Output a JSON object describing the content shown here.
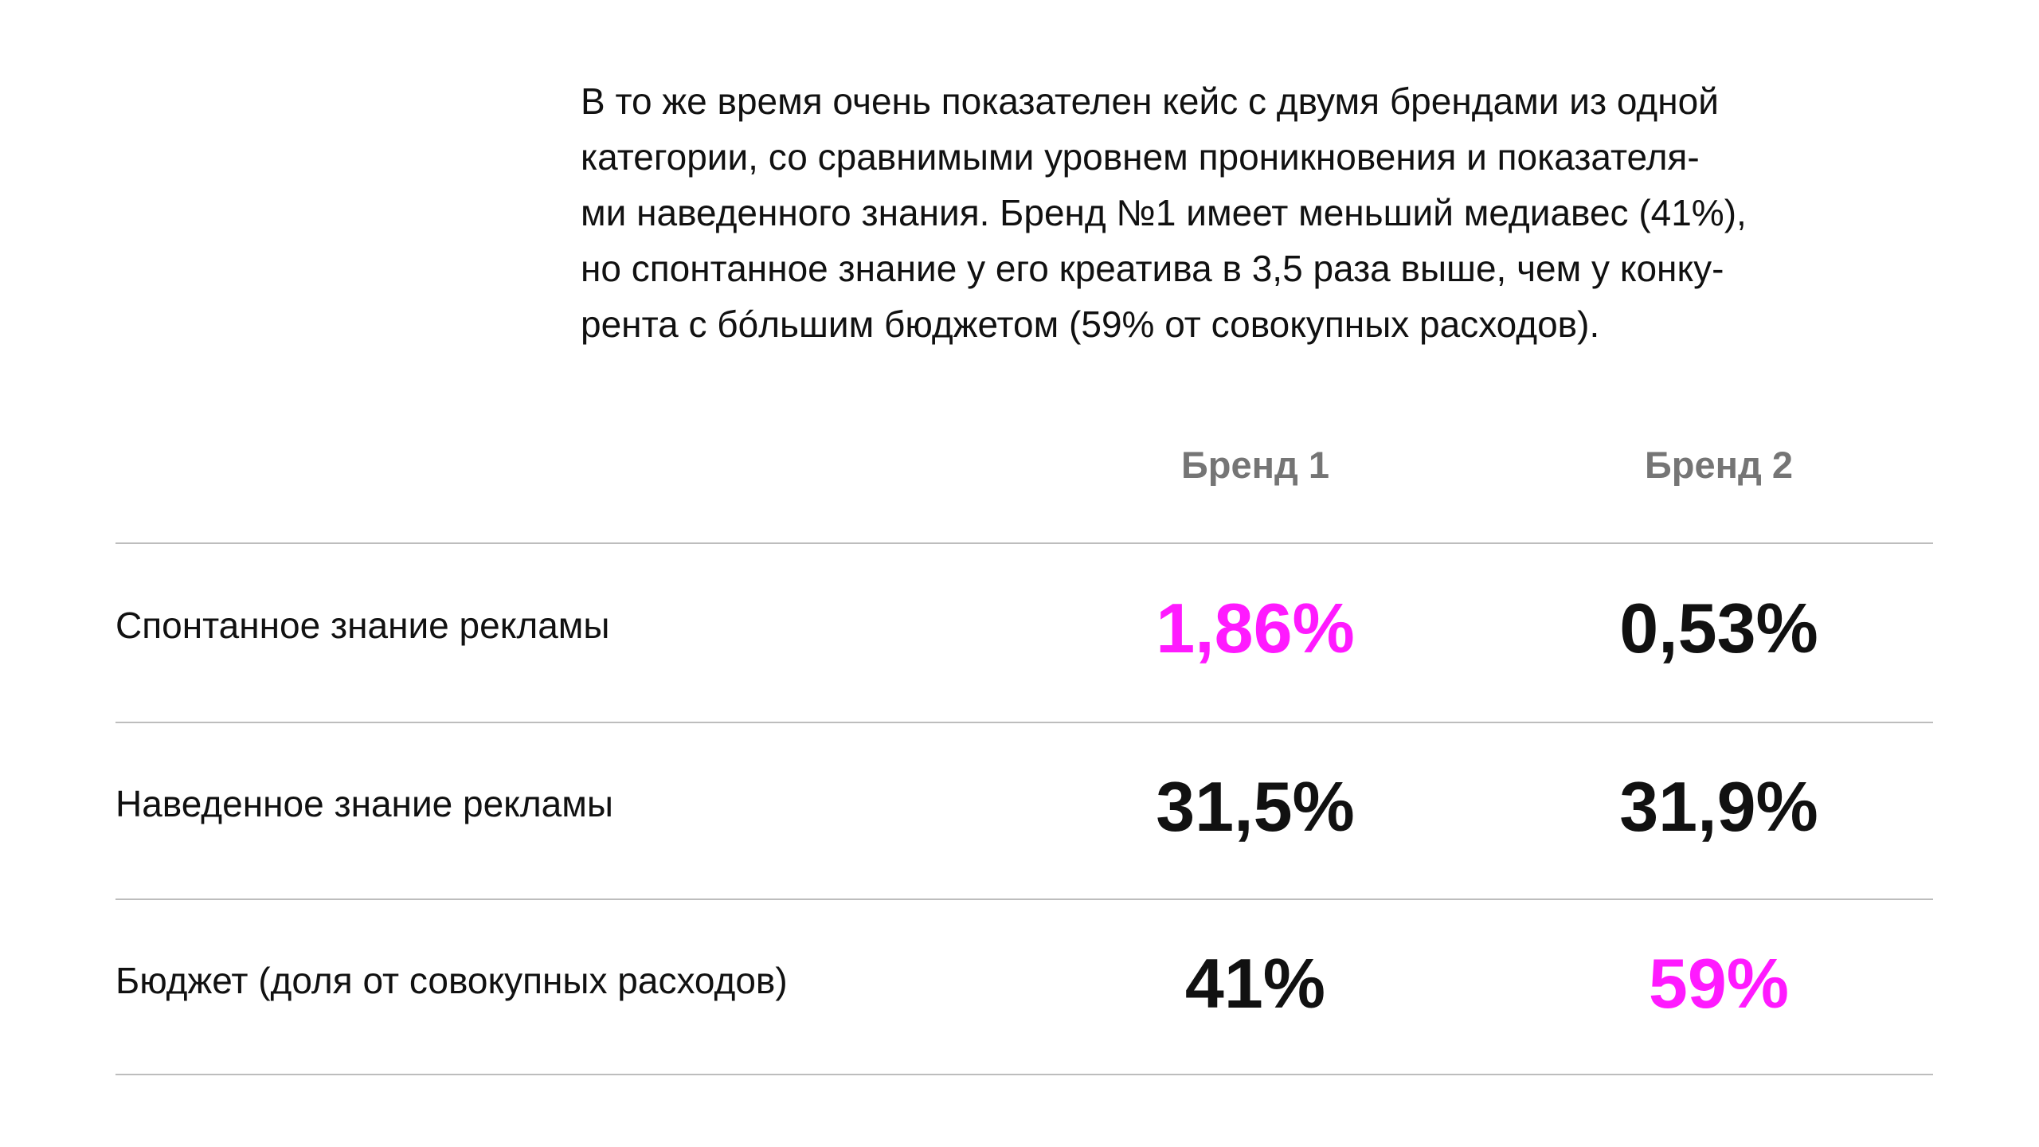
{
  "intro": {
    "lines": [
      "В то же время очень показателен кейс с двумя брендами из одной",
      "категории, со сравнимыми уровнем проникновения и показателя-",
      "ми наведенного знания. Бренд №1 имеет меньший медиавес (41%),",
      "но спонтанное знание у его креатива в 3,5 раза выше, чем у конку-",
      "рента с бóльшим бюджетом (59% от совокупных расходов)."
    ]
  },
  "table": {
    "columns": [
      "Бренд 1",
      "Бренд 2"
    ],
    "rows": [
      {
        "label": "Спонтанное знание рекламы",
        "values": [
          "1,86%",
          "0,53%"
        ],
        "highlight": [
          true,
          false
        ]
      },
      {
        "label": "Наведенное знание рекламы",
        "values": [
          "31,5%",
          "31,9%"
        ],
        "highlight": [
          false,
          false
        ]
      },
      {
        "label": "Бюджет (доля от совокупных расходов)",
        "values": [
          "41%",
          "59%"
        ],
        "highlight": [
          false,
          true
        ]
      }
    ]
  },
  "colors": {
    "highlight": "#ff1aff",
    "text": "#111111",
    "header": "#757575",
    "rule": "#bdbdbd"
  }
}
